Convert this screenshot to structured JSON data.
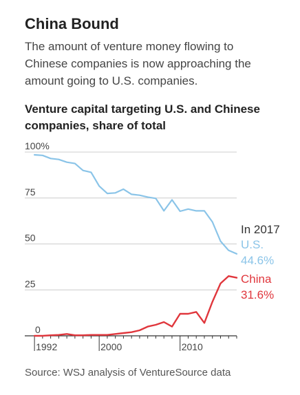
{
  "header": {
    "title": "China Bound",
    "subtitle": "The amount of venture money flowing to Chinese companies is now approaching the amount going to U.S. companies."
  },
  "chart_title": "Venture capital targeting U.S. and Chinese companies, share of total",
  "annotations": {
    "year_label": "In 2017",
    "us_name": "U.S.",
    "us_value": "44.6%",
    "china_name": "China",
    "china_value": "31.6%"
  },
  "source": "Source: WSJ analysis of VentureSource data",
  "colors": {
    "us": "#8ac4e8",
    "china": "#e0363c",
    "grid": "#cccccc",
    "axis": "#333333"
  },
  "chart_data": {
    "type": "line",
    "title": "Venture capital targeting U.S. and Chinese companies, share of total",
    "xlabel": "",
    "ylabel": "",
    "x": [
      1992,
      1993,
      1994,
      1995,
      1996,
      1997,
      1998,
      1999,
      2000,
      2001,
      2002,
      2003,
      2004,
      2005,
      2006,
      2007,
      2008,
      2009,
      2010,
      2011,
      2012,
      2013,
      2014,
      2015,
      2016,
      2017
    ],
    "series": [
      {
        "name": "U.S.",
        "color": "#8ac4e8",
        "values": [
          98.5,
          98.2,
          96.5,
          96,
          94.5,
          93.8,
          90,
          89,
          81.5,
          77.5,
          77.8,
          79.8,
          77,
          76.5,
          75.5,
          74.8,
          68,
          74,
          67.8,
          69,
          68,
          68,
          62,
          51.5,
          46.5,
          44.6
        ]
      },
      {
        "name": "China",
        "color": "#e0363c",
        "values": [
          0,
          0,
          0.3,
          0.5,
          1,
          0.3,
          0.3,
          0.5,
          0.5,
          0.5,
          1,
          1.5,
          2,
          3,
          5,
          6,
          7.5,
          5,
          12,
          12,
          13,
          7,
          18.5,
          28.5,
          32.5,
          31.6
        ]
      }
    ],
    "x_ticks": [
      "1992",
      "2000",
      "2010"
    ],
    "y_ticks": [
      "100%",
      "75",
      "50",
      "25",
      "0"
    ],
    "ylim": [
      0,
      100
    ],
    "xlim": [
      1990.8,
      2017
    ],
    "grid": true,
    "legend": "inline labels at right end"
  }
}
